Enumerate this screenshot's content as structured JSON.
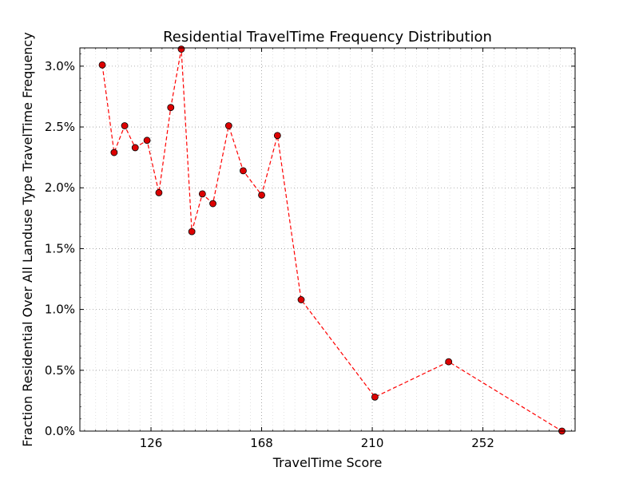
{
  "chart_data": {
    "type": "line",
    "title": "Residential TravelTime Frequency Distribution",
    "xlabel": "TravelTime Score",
    "ylabel": "Fraction Residential Over All Landuse Type TravelTime Frequency",
    "xlim": [
      99,
      287
    ],
    "ylim": [
      0,
      3.15
    ],
    "xticks": [
      126,
      168,
      210,
      252
    ],
    "xtick_labels": [
      "126",
      "168",
      "210",
      "252"
    ],
    "yticks": [
      0,
      0.5,
      1.0,
      1.5,
      2.0,
      2.5,
      3.0
    ],
    "ytick_labels": [
      "0.0%",
      "0.5%",
      "1.0%",
      "1.5%",
      "2.0%",
      "2.5%",
      "3.0%"
    ],
    "grid": true,
    "series": [
      {
        "line_style": "dashed",
        "color": "#ff0000",
        "marker": "circle",
        "marker_color": "#dd0000",
        "x": [
          107.5,
          112,
          116,
          120,
          124.5,
          129,
          133.5,
          137.5,
          141.5,
          145.5,
          149.5,
          155.5,
          161,
          168,
          174,
          183,
          211,
          239,
          282
        ],
        "y": [
          3.01,
          2.29,
          2.51,
          2.33,
          2.39,
          1.96,
          2.66,
          3.14,
          1.64,
          1.95,
          1.87,
          2.51,
          2.14,
          1.94,
          2.43,
          1.08,
          0.28,
          0.57,
          0.0
        ]
      }
    ]
  }
}
